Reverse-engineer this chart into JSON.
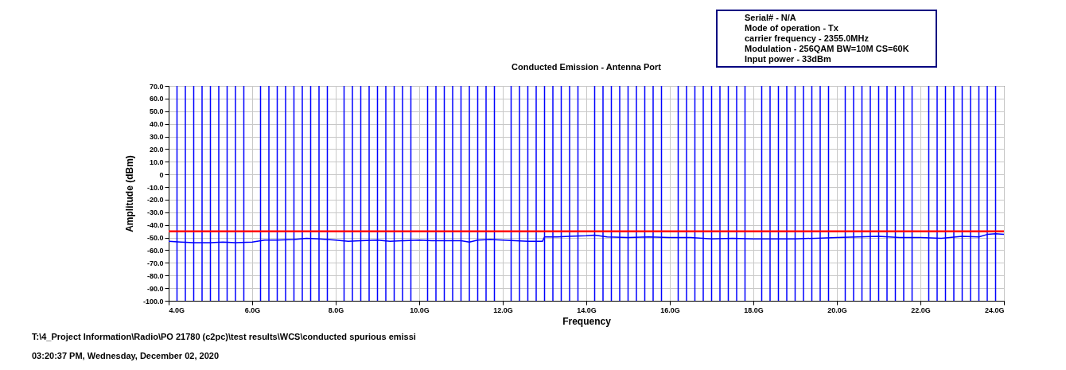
{
  "chart_data": {
    "type": "line",
    "title": "Conducted Emission - Antenna Port",
    "xlabel": "Frequency",
    "ylabel": "Amplitude (dBm)",
    "x": [
      4.0,
      4.3,
      4.6,
      5.0,
      5.3,
      5.6,
      6.0,
      6.3,
      6.6,
      7.0,
      7.3,
      7.6,
      8.0,
      8.3,
      8.6,
      9.0,
      9.3,
      9.6,
      10.0,
      10.3,
      10.6,
      11.0,
      11.2,
      11.4,
      11.7,
      12.0,
      12.3,
      12.6,
      12.95,
      13.0,
      13.3,
      13.6,
      14.0,
      14.2,
      14.5,
      15.0,
      15.5,
      16.0,
      16.5,
      17.0,
      17.5,
      18.0,
      18.5,
      19.0,
      19.5,
      20.0,
      20.5,
      21.0,
      21.5,
      22.0,
      22.5,
      23.0,
      23.4,
      23.6,
      23.8,
      24.0
    ],
    "series": [
      {
        "color": "#0000ff",
        "values": [
          -53,
          -53.5,
          -54,
          -54,
          -53.5,
          -54,
          -53.5,
          -52,
          -52,
          -51.5,
          -50.5,
          -51,
          -52,
          -53,
          -52.5,
          -52,
          -53,
          -52.5,
          -52,
          -52.5,
          -52.5,
          -52.5,
          -53.5,
          -52,
          -51.5,
          -52,
          -52.5,
          -53,
          -53,
          -49.5,
          -49.5,
          -49,
          -48.5,
          -48,
          -49.5,
          -50,
          -49.5,
          -50,
          -50,
          -51,
          -50.5,
          -51,
          -51,
          -51,
          -50.5,
          -50,
          -49.5,
          -49,
          -50,
          -50,
          -50.5,
          -49,
          -49.5,
          -47.5,
          -47,
          -47.5
        ]
      }
    ],
    "xlim": [
      4,
      24
    ],
    "xticks": [
      {
        "value": 4,
        "label": "4.0G"
      },
      {
        "value": 6,
        "label": "6.0G"
      },
      {
        "value": 8,
        "label": "8.0G"
      },
      {
        "value": 10,
        "label": "10.0G"
      },
      {
        "value": 12,
        "label": "12.0G"
      },
      {
        "value": 14,
        "label": "14.0G"
      },
      {
        "value": 16,
        "label": "16.0G"
      },
      {
        "value": 18,
        "label": "18.0G"
      },
      {
        "value": 20,
        "label": "20.0G"
      },
      {
        "value": 22,
        "label": "22.0G"
      },
      {
        "value": 24,
        "label": "24.0G"
      }
    ],
    "ylim": [
      -100,
      70
    ],
    "yticks": [
      {
        "value": -100,
        "label": "-100.0"
      },
      {
        "value": -90,
        "label": "-90.0"
      },
      {
        "value": -80,
        "label": "-80.0"
      },
      {
        "value": -70,
        "label": "-70.0"
      },
      {
        "value": -60,
        "label": "-60.0"
      },
      {
        "value": -50,
        "label": "-50.0"
      },
      {
        "value": -40,
        "label": "-40.0"
      },
      {
        "value": -30,
        "label": "-30.0"
      },
      {
        "value": -20,
        "label": "-20.0"
      },
      {
        "value": -10,
        "label": "-10.0"
      },
      0,
      {
        "value": 10,
        "label": "10.0"
      },
      {
        "value": 20,
        "label": "20.0"
      },
      {
        "value": 30,
        "label": "30.0"
      },
      {
        "value": 40,
        "label": "40.0"
      },
      {
        "value": 50,
        "label": "50.0"
      },
      {
        "value": 60,
        "label": "60.0"
      },
      {
        "value": 70,
        "label": "70.0"
      }
    ],
    "grid": true,
    "ref_lines": [
      {
        "axis": "y",
        "value": -45,
        "label": null,
        "color": "#ff0000"
      },
      {
        "axis": "x",
        "value": 4.2,
        "label": null,
        "color": "#0000ff"
      },
      {
        "axis": "x",
        "value": 4.4,
        "label": null,
        "color": "#0000ff"
      },
      {
        "axis": "x",
        "value": 4.6,
        "label": null,
        "color": "#0000ff"
      },
      {
        "axis": "x",
        "value": 4.8,
        "label": null,
        "color": "#0000ff"
      },
      {
        "axis": "x",
        "value": 5.0,
        "label": null,
        "color": "#0000ff"
      },
      {
        "axis": "x",
        "value": 5.2,
        "label": null,
        "color": "#0000ff"
      },
      {
        "axis": "x",
        "value": 5.4,
        "label": null,
        "color": "#0000ff"
      },
      {
        "axis": "x",
        "value": 5.6,
        "label": null,
        "color": "#0000ff"
      },
      {
        "axis": "x",
        "value": 5.8,
        "label": null,
        "color": "#0000ff"
      },
      {
        "axis": "x",
        "value": 6.2,
        "label": null,
        "color": "#0000ff"
      },
      {
        "axis": "x",
        "value": 6.4,
        "label": null,
        "color": "#0000ff"
      },
      {
        "axis": "x",
        "value": 6.6,
        "label": null,
        "color": "#0000ff"
      },
      {
        "axis": "x",
        "value": 6.8,
        "label": null,
        "color": "#0000ff"
      },
      {
        "axis": "x",
        "value": 7.0,
        "label": null,
        "color": "#0000ff"
      },
      {
        "axis": "x",
        "value": 7.2,
        "label": null,
        "color": "#0000ff"
      },
      {
        "axis": "x",
        "value": 7.4,
        "label": null,
        "color": "#0000ff"
      },
      {
        "axis": "x",
        "value": 7.6,
        "label": null,
        "color": "#0000ff"
      },
      {
        "axis": "x",
        "value": 7.8,
        "label": null,
        "color": "#0000ff"
      },
      {
        "axis": "x",
        "value": 8.2,
        "label": null,
        "color": "#0000ff"
      },
      {
        "axis": "x",
        "value": 8.4,
        "label": null,
        "color": "#0000ff"
      },
      {
        "axis": "x",
        "value": 8.6,
        "label": null,
        "color": "#0000ff"
      },
      {
        "axis": "x",
        "value": 8.8,
        "label": null,
        "color": "#0000ff"
      },
      {
        "axis": "x",
        "value": 9.0,
        "label": null,
        "color": "#0000ff"
      },
      {
        "axis": "x",
        "value": 9.2,
        "label": null,
        "color": "#0000ff"
      },
      {
        "axis": "x",
        "value": 9.4,
        "label": null,
        "color": "#0000ff"
      },
      {
        "axis": "x",
        "value": 9.6,
        "label": null,
        "color": "#0000ff"
      },
      {
        "axis": "x",
        "value": 9.8,
        "label": null,
        "color": "#0000ff"
      },
      {
        "axis": "x",
        "value": 10.2,
        "label": null,
        "color": "#0000ff"
      },
      {
        "axis": "x",
        "value": 10.4,
        "label": null,
        "color": "#0000ff"
      },
      {
        "axis": "x",
        "value": 10.6,
        "label": null,
        "color": "#0000ff"
      },
      {
        "axis": "x",
        "value": 10.8,
        "label": null,
        "color": "#0000ff"
      },
      {
        "axis": "x",
        "value": 11.0,
        "label": null,
        "color": "#0000ff"
      },
      {
        "axis": "x",
        "value": 11.2,
        "label": null,
        "color": "#0000ff"
      },
      {
        "axis": "x",
        "value": 11.4,
        "label": null,
        "color": "#0000ff"
      },
      {
        "axis": "x",
        "value": 11.6,
        "label": null,
        "color": "#0000ff"
      },
      {
        "axis": "x",
        "value": 11.8,
        "label": null,
        "color": "#0000ff"
      },
      {
        "axis": "x",
        "value": 12.2,
        "label": null,
        "color": "#0000ff"
      },
      {
        "axis": "x",
        "value": 12.4,
        "label": null,
        "color": "#0000ff"
      },
      {
        "axis": "x",
        "value": 12.6,
        "label": null,
        "color": "#0000ff"
      },
      {
        "axis": "x",
        "value": 12.8,
        "label": null,
        "color": "#0000ff"
      },
      {
        "axis": "x",
        "value": 13.0,
        "label": null,
        "color": "#0000ff"
      },
      {
        "axis": "x",
        "value": 13.2,
        "label": null,
        "color": "#0000ff"
      },
      {
        "axis": "x",
        "value": 13.4,
        "label": null,
        "color": "#0000ff"
      },
      {
        "axis": "x",
        "value": 13.6,
        "label": null,
        "color": "#0000ff"
      },
      {
        "axis": "x",
        "value": 13.8,
        "label": null,
        "color": "#0000ff"
      },
      {
        "axis": "x",
        "value": 14.2,
        "label": null,
        "color": "#0000ff"
      },
      {
        "axis": "x",
        "value": 14.4,
        "label": null,
        "color": "#0000ff"
      },
      {
        "axis": "x",
        "value": 14.6,
        "label": null,
        "color": "#0000ff"
      },
      {
        "axis": "x",
        "value": 14.8,
        "label": null,
        "color": "#0000ff"
      },
      {
        "axis": "x",
        "value": 15.0,
        "label": null,
        "color": "#0000ff"
      },
      {
        "axis": "x",
        "value": 15.2,
        "label": null,
        "color": "#0000ff"
      },
      {
        "axis": "x",
        "value": 15.4,
        "label": null,
        "color": "#0000ff"
      },
      {
        "axis": "x",
        "value": 15.6,
        "label": null,
        "color": "#0000ff"
      },
      {
        "axis": "x",
        "value": 15.8,
        "label": null,
        "color": "#0000ff"
      },
      {
        "axis": "x",
        "value": 16.2,
        "label": null,
        "color": "#0000ff"
      },
      {
        "axis": "x",
        "value": 16.4,
        "label": null,
        "color": "#0000ff"
      },
      {
        "axis": "x",
        "value": 16.6,
        "label": null,
        "color": "#0000ff"
      },
      {
        "axis": "x",
        "value": 16.8,
        "label": null,
        "color": "#0000ff"
      },
      {
        "axis": "x",
        "value": 17.0,
        "label": null,
        "color": "#0000ff"
      },
      {
        "axis": "x",
        "value": 17.2,
        "label": null,
        "color": "#0000ff"
      },
      {
        "axis": "x",
        "value": 17.4,
        "label": null,
        "color": "#0000ff"
      },
      {
        "axis": "x",
        "value": 17.6,
        "label": null,
        "color": "#0000ff"
      },
      {
        "axis": "x",
        "value": 17.8,
        "label": null,
        "color": "#0000ff"
      },
      {
        "axis": "x",
        "value": 18.2,
        "label": null,
        "color": "#0000ff"
      },
      {
        "axis": "x",
        "value": 18.4,
        "label": null,
        "color": "#0000ff"
      },
      {
        "axis": "x",
        "value": 18.6,
        "label": null,
        "color": "#0000ff"
      },
      {
        "axis": "x",
        "value": 18.8,
        "label": null,
        "color": "#0000ff"
      },
      {
        "axis": "x",
        "value": 19.0,
        "label": null,
        "color": "#0000ff"
      },
      {
        "axis": "x",
        "value": 19.2,
        "label": null,
        "color": "#0000ff"
      },
      {
        "axis": "x",
        "value": 19.4,
        "label": null,
        "color": "#0000ff"
      },
      {
        "axis": "x",
        "value": 19.6,
        "label": null,
        "color": "#0000ff"
      },
      {
        "axis": "x",
        "value": 19.8,
        "label": null,
        "color": "#0000ff"
      },
      {
        "axis": "x",
        "value": 20.2,
        "label": null,
        "color": "#0000ff"
      },
      {
        "axis": "x",
        "value": 20.4,
        "label": null,
        "color": "#0000ff"
      },
      {
        "axis": "x",
        "value": 20.6,
        "label": null,
        "color": "#0000ff"
      },
      {
        "axis": "x",
        "value": 20.8,
        "label": null,
        "color": "#0000ff"
      },
      {
        "axis": "x",
        "value": 21.0,
        "label": null,
        "color": "#0000ff"
      },
      {
        "axis": "x",
        "value": 21.2,
        "label": null,
        "color": "#0000ff"
      },
      {
        "axis": "x",
        "value": 21.4,
        "label": null,
        "color": "#0000ff"
      },
      {
        "axis": "x",
        "value": 21.6,
        "label": null,
        "color": "#0000ff"
      },
      {
        "axis": "x",
        "value": 21.8,
        "label": null,
        "color": "#0000ff"
      },
      {
        "axis": "x",
        "value": 22.2,
        "label": null,
        "color": "#0000ff"
      },
      {
        "axis": "x",
        "value": 22.4,
        "label": null,
        "color": "#0000ff"
      },
      {
        "axis": "x",
        "value": 22.6,
        "label": null,
        "color": "#0000ff"
      },
      {
        "axis": "x",
        "value": 22.8,
        "label": null,
        "color": "#0000ff"
      },
      {
        "axis": "x",
        "value": 23.0,
        "label": null,
        "color": "#0000ff"
      },
      {
        "axis": "x",
        "value": 23.2,
        "label": null,
        "color": "#0000ff"
      },
      {
        "axis": "x",
        "value": 23.4,
        "label": null,
        "color": "#0000ff"
      },
      {
        "axis": "x",
        "value": 23.6,
        "label": null,
        "color": "#0000ff"
      },
      {
        "axis": "x",
        "value": 23.8,
        "label": null,
        "color": "#0000ff"
      }
    ],
    "annotations": [
      "Serial# - N/A",
      "Mode of operation - Tx",
      "carrier frequency - 2355.0MHz",
      "Modulation - 256QAM BW=10M CS=60K",
      "Input power - 33dBm",
      "T:\\4_Project Information\\Radio\\PO 21780 (c2pc)\\test results\\WCS\\conducted spurious emissi",
      "03:20:37 PM, Wednesday, December 02, 2020"
    ]
  }
}
